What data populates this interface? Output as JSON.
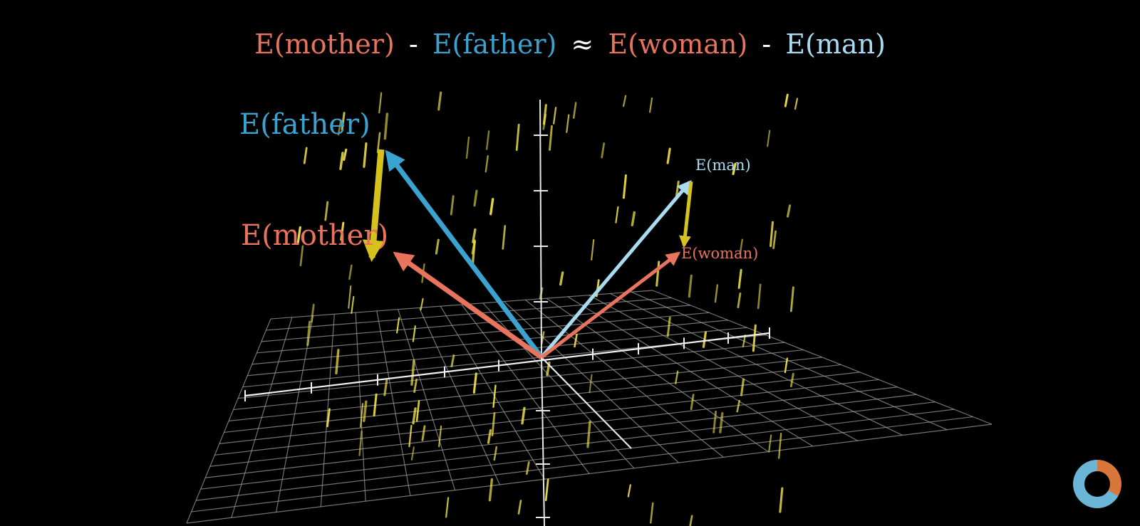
{
  "equation": {
    "t1": "E(mother)",
    "op1": "-",
    "t2": "E(father)",
    "op2": "≈",
    "t3": "E(woman)",
    "op3": "-",
    "t4": "E(man)"
  },
  "labels": {
    "father": "E(father)",
    "mother": "E(mother)",
    "man": "E(man)",
    "woman": "E(woman)"
  },
  "colors": {
    "salmon": "#e8745e",
    "blue": "#3aa3cf",
    "light_blue": "#a9dcf0",
    "yellow": "#d6c21c",
    "grid": "#cfcfcf",
    "dash": "#f2e34a",
    "spinner_orange": "#d9773a",
    "spinner_blue": "#6bb6d6"
  },
  "icons": {
    "loading": "loading-spinner-icon"
  }
}
